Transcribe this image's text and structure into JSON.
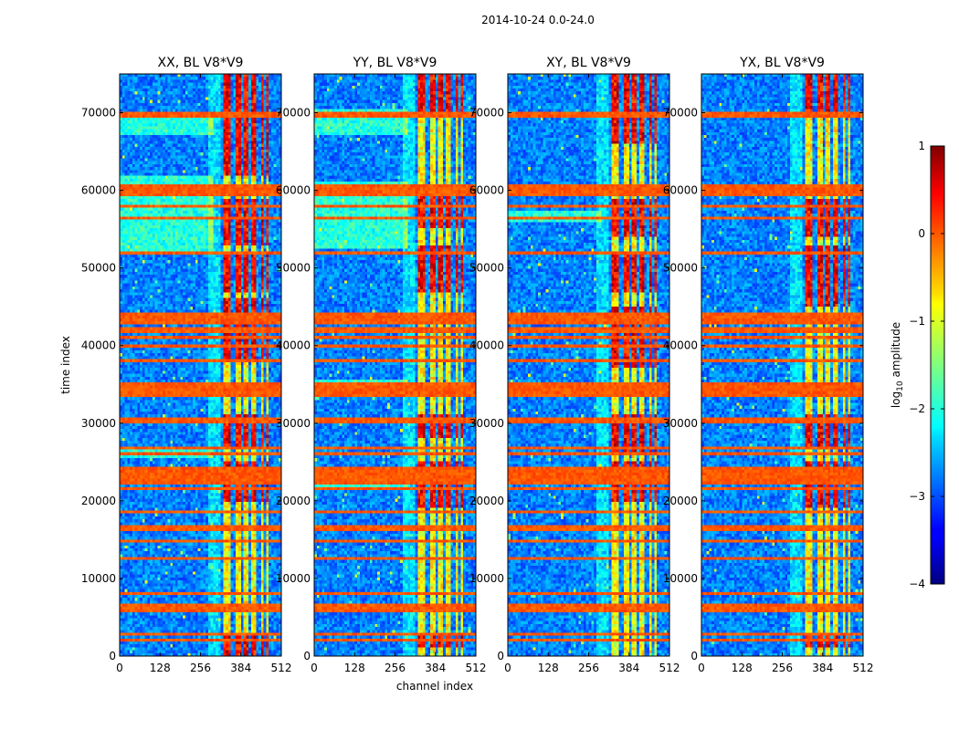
{
  "chart_data": {
    "type": "heatmap",
    "suptitle": "2014-10-24 0.0-24.0",
    "xlabel": "channel index",
    "ylabel": "time index",
    "xlim": [
      0,
      512
    ],
    "ylim": [
      0,
      75000
    ],
    "x_ticks": [
      0,
      128,
      256,
      384,
      512
    ],
    "y_ticks": [
      0,
      10000,
      20000,
      30000,
      40000,
      50000,
      60000,
      70000
    ],
    "colorbar": {
      "label": "log10 amplitude",
      "label_main": "log",
      "label_sub": "10",
      "label_rest": " amplitude",
      "range": [
        -4,
        1
      ],
      "ticks": [
        "1",
        "0",
        "−1",
        "−2",
        "−3",
        "−4"
      ],
      "colormap": "jet"
    },
    "panels": [
      {
        "title": "XX, BL V8*V9",
        "hot_blocks": [
          [
            0,
            2500
          ],
          [
            20000,
            25000
          ],
          [
            27000,
            31000
          ],
          [
            38000,
            46000
          ],
          [
            47000,
            52000
          ],
          [
            53000,
            59000
          ],
          [
            62000,
            75000
          ]
        ],
        "low_freq_bands": [
          [
            52000,
            62000
          ],
          [
            25500,
            26500
          ],
          [
            14500,
            15000
          ],
          [
            67000,
            70000
          ]
        ]
      },
      {
        "title": "YY, BL V8*V9",
        "hot_blocks": [
          [
            1000,
            3000
          ],
          [
            19000,
            25000
          ],
          [
            28000,
            31000
          ],
          [
            47000,
            53000
          ],
          [
            55000,
            60000
          ],
          [
            70000,
            75000
          ]
        ],
        "low_freq_bands": [
          [
            21500,
            23500
          ],
          [
            52500,
            61000
          ],
          [
            67000,
            70500
          ],
          [
            34500,
            35500
          ]
        ]
      },
      {
        "title": "XY, BL V8*V9",
        "hot_blocks": [
          [
            20000,
            25000
          ],
          [
            26000,
            31000
          ],
          [
            37000,
            45000
          ],
          [
            47000,
            52000
          ],
          [
            54000,
            59000
          ],
          [
            66000,
            75000
          ]
        ],
        "low_freq_bands": [
          [
            22000,
            23500
          ],
          [
            56000,
            57500
          ]
        ]
      },
      {
        "title": "YX, BL V8*V9",
        "hot_blocks": [
          [
            1000,
            2500
          ],
          [
            19000,
            25000
          ],
          [
            27000,
            31000
          ],
          [
            45000,
            53000
          ],
          [
            54000,
            59000
          ],
          [
            70000,
            75000
          ]
        ],
        "low_freq_bands": [
          [
            22000,
            24000
          ]
        ]
      }
    ],
    "rfi_time_rows": [
      2000,
      2800,
      6000,
      6500,
      8000,
      12500,
      14800,
      16500,
      18500,
      21500,
      22500,
      23000,
      23500,
      24000,
      26000,
      26800,
      30300,
      30600,
      33500,
      34000,
      34500,
      35000,
      38000,
      40000,
      41000,
      42000,
      42800,
      43500,
      44000,
      52000,
      56500,
      58000,
      59500,
      60000,
      60500,
      69500,
      70000
    ],
    "rfi_channels": [
      324,
      360,
      390,
      414,
      440,
      462,
      480
    ]
  }
}
